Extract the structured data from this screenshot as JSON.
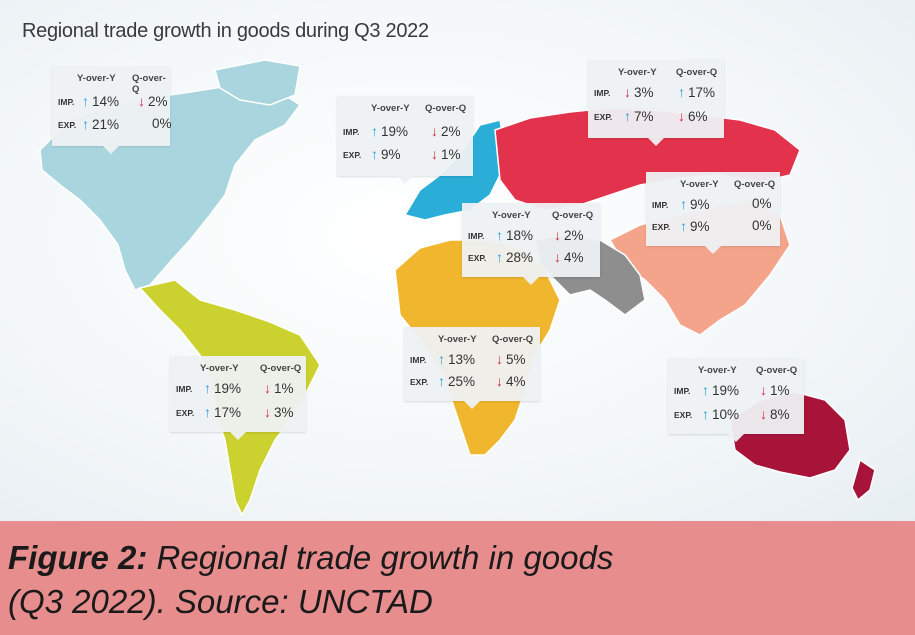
{
  "title": "Regional trade growth in goods during Q3 2022",
  "headers": {
    "yoy": "Y-over-Y",
    "qoq": "Q-over-Q",
    "imp": "IMP.",
    "exp": "EXP."
  },
  "regions": {
    "north_america": {
      "color": "#a9d6de",
      "imp_yoy": "14%",
      "imp_yoy_dir": "up",
      "imp_qoq": "2%",
      "imp_qoq_dir": "down",
      "exp_yoy": "21%",
      "exp_yoy_dir": "up",
      "exp_qoq": "0%",
      "exp_qoq_dir": "flat"
    },
    "europe": {
      "color": "#2aaed8",
      "imp_yoy": "19%",
      "imp_yoy_dir": "up",
      "imp_qoq": "2%",
      "imp_qoq_dir": "down",
      "exp_yoy": "9%",
      "exp_yoy_dir": "up",
      "exp_qoq": "1%",
      "exp_qoq_dir": "down"
    },
    "cis": {
      "color": "#e3324b",
      "imp_yoy": "3%",
      "imp_yoy_dir": "down",
      "imp_qoq": "17%",
      "imp_qoq_dir": "up",
      "exp_yoy": "7%",
      "exp_yoy_dir": "up",
      "exp_qoq": "6%",
      "exp_qoq_dir": "down"
    },
    "east_asia": {
      "color": "#f5a48c",
      "imp_yoy": "9%",
      "imp_yoy_dir": "up",
      "imp_qoq": "0%",
      "imp_qoq_dir": "flat",
      "exp_yoy": "9%",
      "exp_yoy_dir": "up",
      "exp_qoq": "0%",
      "exp_qoq_dir": "flat"
    },
    "west_asia": {
      "color": "#8e8e8e",
      "imp_yoy": "18%",
      "imp_yoy_dir": "up",
      "imp_qoq": "2%",
      "imp_qoq_dir": "down",
      "exp_yoy": "28%",
      "exp_yoy_dir": "up",
      "exp_qoq": "4%",
      "exp_qoq_dir": "down"
    },
    "africa": {
      "color": "#f0b62e",
      "imp_yoy": "13%",
      "imp_yoy_dir": "up",
      "imp_qoq": "5%",
      "imp_qoq_dir": "down",
      "exp_yoy": "25%",
      "exp_yoy_dir": "up",
      "exp_qoq": "4%",
      "exp_qoq_dir": "down"
    },
    "south_america": {
      "color": "#cbd12e",
      "imp_yoy": "19%",
      "imp_yoy_dir": "up",
      "imp_qoq": "1%",
      "imp_qoq_dir": "down",
      "exp_yoy": "17%",
      "exp_yoy_dir": "up",
      "exp_qoq": "3%",
      "exp_qoq_dir": "down"
    },
    "oceania": {
      "color": "#a8133a",
      "imp_yoy": "19%",
      "imp_yoy_dir": "up",
      "imp_qoq": "1%",
      "imp_qoq_dir": "down",
      "exp_yoy": "10%",
      "exp_yoy_dir": "up",
      "exp_qoq": "8%",
      "exp_qoq_dir": "down"
    }
  },
  "caption": {
    "label": "Figure 2:",
    "line1": " Regional trade growth in goods",
    "line2": "(Q3 2022). Source: UNCTAD"
  }
}
